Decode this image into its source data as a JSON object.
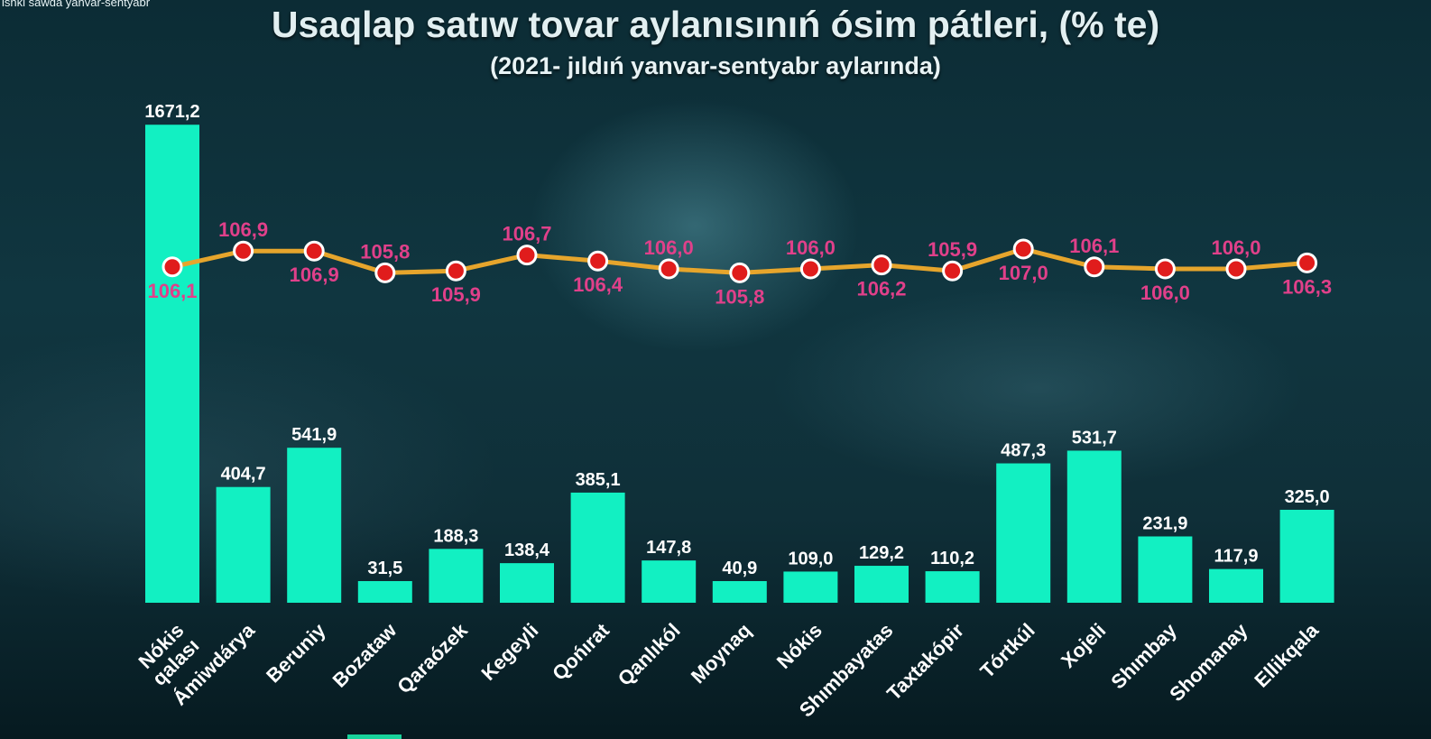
{
  "caption": "ishki sawda yanvar-sentyabr",
  "colors": {
    "bar": "#12f0c2",
    "line": "#e6a52c",
    "marker": "#e01c1c",
    "line_label": "#e0408a",
    "bar_label": "#ffffff"
  },
  "chart_data": {
    "type": "bar",
    "title": "Usaqlap satıw tovar aylanısınıń ósim pátleri, (% te)",
    "subtitle": "(2021- jıldıń yanvar-sentyabr aylarında)",
    "categories": [
      "Nókis qalası",
      "Ámiwdárya",
      "Beruniy",
      "Bozataw",
      "Qaraózek",
      "Kegeyli",
      "Qońırat",
      "Qanlıkól",
      "Moynaq",
      "Nókis",
      "Shımbayatas",
      "Taxtakópir",
      "Tórtkúl",
      "Xojeli",
      "Shımbay",
      "Shomanay",
      "Ellikqala"
    ],
    "category_lines": [
      [
        "Nókis",
        "qalası"
      ],
      [
        "Ámiwdárya"
      ],
      [
        "Beruniy"
      ],
      [
        "Bozataw"
      ],
      [
        "Qaraózek"
      ],
      [
        "Kegeyli"
      ],
      [
        "Qońırat"
      ],
      [
        "Qanlıkól"
      ],
      [
        "Moynaq"
      ],
      [
        "Nókis"
      ],
      [
        "Shımbayatas"
      ],
      [
        "Taxtakópir"
      ],
      [
        "Tórtkúl"
      ],
      [
        "Xojeli"
      ],
      [
        "Shımbay"
      ],
      [
        "Shomanay"
      ],
      [
        "Ellikqala"
      ]
    ],
    "series": [
      {
        "kind": "bar",
        "values": [
          1671.2,
          404.7,
          541.9,
          31.5,
          188.3,
          138.4,
          385.1,
          147.8,
          40.9,
          109.0,
          129.2,
          110.2,
          487.3,
          531.7,
          231.9,
          117.9,
          325.0
        ],
        "labels": [
          "1671,2",
          "404,7",
          "541,9",
          "31,5",
          "188,3",
          "138,4",
          "385,1",
          "147,8",
          "40,9",
          "109,0",
          "129,2",
          "110,2",
          "487,3",
          "531,7",
          "231,9",
          "117,9",
          "325,0"
        ]
      },
      {
        "kind": "line",
        "values": [
          106.1,
          106.9,
          106.9,
          105.8,
          105.9,
          106.7,
          106.4,
          106.0,
          105.8,
          106.0,
          106.2,
          105.9,
          107.0,
          106.1,
          106.0,
          106.0,
          106.3
        ],
        "labels": [
          "106,1",
          "106,9",
          "106,9",
          "105,8",
          "105,9",
          "106,7",
          "106,4",
          "106,0",
          "105,8",
          "106,0",
          "106,2",
          "105,9",
          "107,0",
          "106,1",
          "106,0",
          "106,0",
          "106,3"
        ]
      }
    ],
    "grid": false,
    "legend": "none"
  }
}
